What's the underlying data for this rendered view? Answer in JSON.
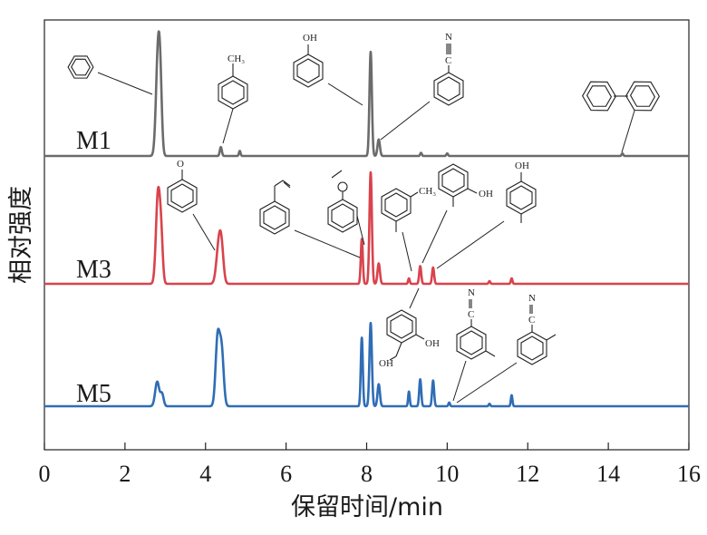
{
  "chart_data": {
    "type": "line",
    "xlabel": "保留时间/min",
    "ylabel": "相对强度",
    "xlim": [
      0,
      16
    ],
    "x_ticks": [
      "0",
      "2",
      "4",
      "6",
      "8",
      "10",
      "12",
      "14",
      "16"
    ],
    "grid": false,
    "series": [
      {
        "name": "M1",
        "color": "#6b6b6b",
        "baseline": 0.0,
        "peaks": [
          {
            "rt": 2.82,
            "height": 0.8,
            "width": 0.05
          },
          {
            "rt": 2.88,
            "height": 0.4,
            "width": 0.04
          },
          {
            "rt": 4.38,
            "height": 0.07,
            "width": 0.025
          },
          {
            "rt": 4.85,
            "height": 0.04,
            "width": 0.02
          },
          {
            "rt": 8.1,
            "height": 0.82,
            "width": 0.03
          },
          {
            "rt": 8.3,
            "height": 0.13,
            "width": 0.03
          },
          {
            "rt": 9.35,
            "height": 0.025,
            "width": 0.02
          },
          {
            "rt": 10.0,
            "height": 0.02,
            "width": 0.02
          },
          {
            "rt": 14.35,
            "height": 0.02,
            "width": 0.02
          }
        ]
      },
      {
        "name": "M3",
        "color": "#d9434c",
        "baseline": 0.0,
        "peaks": [
          {
            "rt": 2.82,
            "height": 0.66,
            "width": 0.05
          },
          {
            "rt": 2.9,
            "height": 0.3,
            "width": 0.04
          },
          {
            "rt": 4.33,
            "height": 0.28,
            "width": 0.06
          },
          {
            "rt": 4.4,
            "height": 0.2,
            "width": 0.05
          },
          {
            "rt": 7.88,
            "height": 0.33,
            "width": 0.025
          },
          {
            "rt": 8.1,
            "height": 0.82,
            "width": 0.03
          },
          {
            "rt": 8.3,
            "height": 0.15,
            "width": 0.03
          },
          {
            "rt": 9.05,
            "height": 0.04,
            "width": 0.02
          },
          {
            "rt": 9.33,
            "height": 0.13,
            "width": 0.025
          },
          {
            "rt": 9.65,
            "height": 0.12,
            "width": 0.025
          },
          {
            "rt": 11.05,
            "height": 0.02,
            "width": 0.02
          },
          {
            "rt": 11.6,
            "height": 0.04,
            "width": 0.02
          }
        ]
      },
      {
        "name": "M5",
        "color": "#2f6db5",
        "baseline": 0.0,
        "peaks": [
          {
            "rt": 2.8,
            "height": 0.2,
            "width": 0.05
          },
          {
            "rt": 2.92,
            "height": 0.1,
            "width": 0.04
          },
          {
            "rt": 4.3,
            "height": 0.55,
            "width": 0.05
          },
          {
            "rt": 4.4,
            "height": 0.45,
            "width": 0.05
          },
          {
            "rt": 7.88,
            "height": 0.56,
            "width": 0.025
          },
          {
            "rt": 8.1,
            "height": 0.68,
            "width": 0.03
          },
          {
            "rt": 8.3,
            "height": 0.18,
            "width": 0.03
          },
          {
            "rt": 9.05,
            "height": 0.12,
            "width": 0.02
          },
          {
            "rt": 9.33,
            "height": 0.22,
            "width": 0.025
          },
          {
            "rt": 9.65,
            "height": 0.21,
            "width": 0.025
          },
          {
            "rt": 10.05,
            "height": 0.03,
            "width": 0.02
          },
          {
            "rt": 11.05,
            "height": 0.02,
            "width": 0.02
          },
          {
            "rt": 11.6,
            "height": 0.09,
            "width": 0.02
          }
        ]
      }
    ],
    "annotations": [
      "CH₃",
      "OH",
      "N",
      "C",
      "O",
      "CH₃",
      "OH",
      "OH",
      "OH",
      "OH",
      "N",
      "C",
      "N",
      "C"
    ]
  }
}
